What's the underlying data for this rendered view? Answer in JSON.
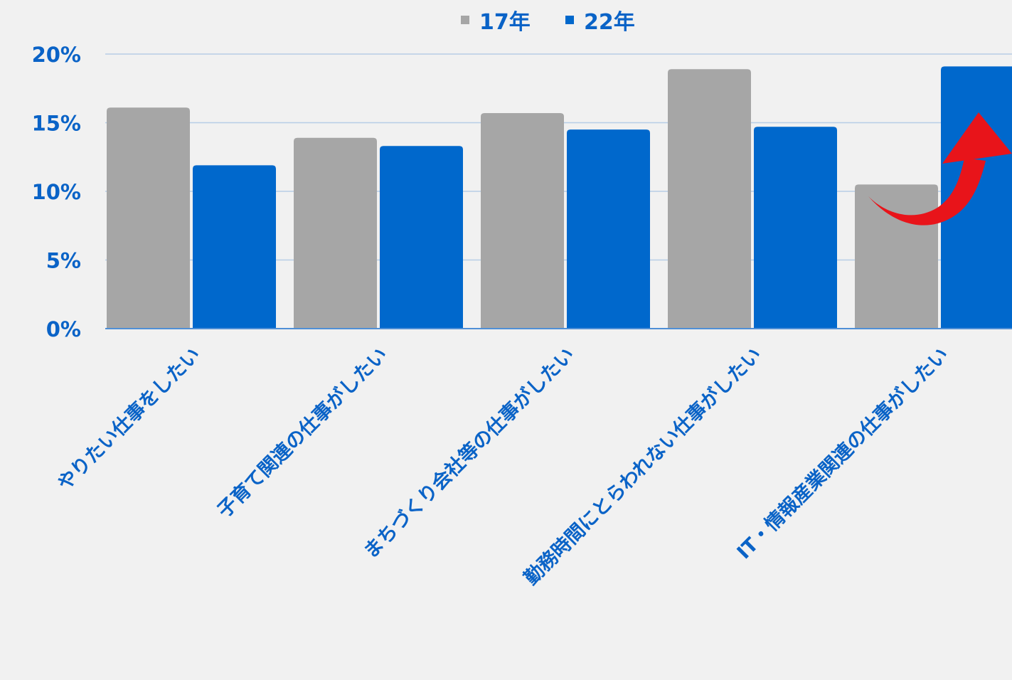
{
  "chart_data": {
    "type": "bar",
    "categories": [
      "やりたい仕事をしたい",
      "子育て関連の仕事がしたい",
      "まちづくり会社等の仕事がしたい",
      "勤務時間にとらわれない仕事がしたい",
      "IT・情報産業関連の仕事がしたい"
    ],
    "series": [
      {
        "name": "17年",
        "color": "#a6a6a6",
        "values": [
          16.1,
          13.9,
          15.7,
          18.9,
          10.5
        ]
      },
      {
        "name": "22年",
        "color": "#0068cc",
        "values": [
          11.9,
          13.3,
          14.5,
          14.7,
          19.1
        ]
      }
    ],
    "yticks": [
      "0%",
      "5%",
      "10%",
      "15%",
      "20%"
    ],
    "ylim": [
      0,
      20
    ],
    "grid": true,
    "legend": "top-center",
    "title": "",
    "xlabel": "",
    "ylabel": "",
    "annotations": [
      {
        "type": "arrow",
        "icon": "curved-up-arrow-icon",
        "color": "#e8141a",
        "category_index": 4,
        "meaning": "increase"
      }
    ],
    "text_color": "#0a63c7",
    "grid_color": "#b7cde6",
    "axis_color": "#4f8fd6"
  }
}
